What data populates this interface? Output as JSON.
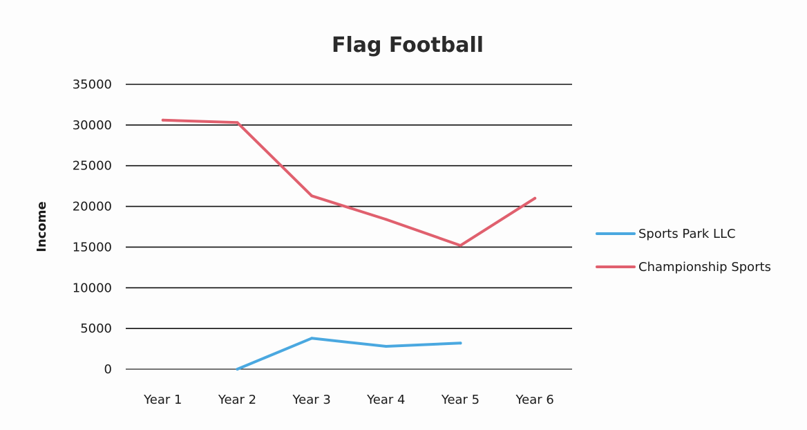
{
  "chart_data": {
    "type": "line",
    "title": "Flag Football",
    "xlabel": "",
    "ylabel": "Income",
    "categories": [
      "Year 1",
      "Year 2",
      "Year 3",
      "Year 4",
      "Year 5",
      "Year 6"
    ],
    "ylim": [
      0,
      35000
    ],
    "yticks": [
      0,
      5000,
      10000,
      15000,
      20000,
      25000,
      30000,
      35000
    ],
    "grid": true,
    "legend_position": "right",
    "series": [
      {
        "name": "Sports Park LLC",
        "color": "#4aa8e0",
        "values": [
          null,
          0,
          3800,
          2800,
          3200,
          null
        ]
      },
      {
        "name": "Championship Sports",
        "color": "#e0606e",
        "values": [
          30600,
          30300,
          21300,
          18400,
          15200,
          21000
        ]
      }
    ]
  }
}
